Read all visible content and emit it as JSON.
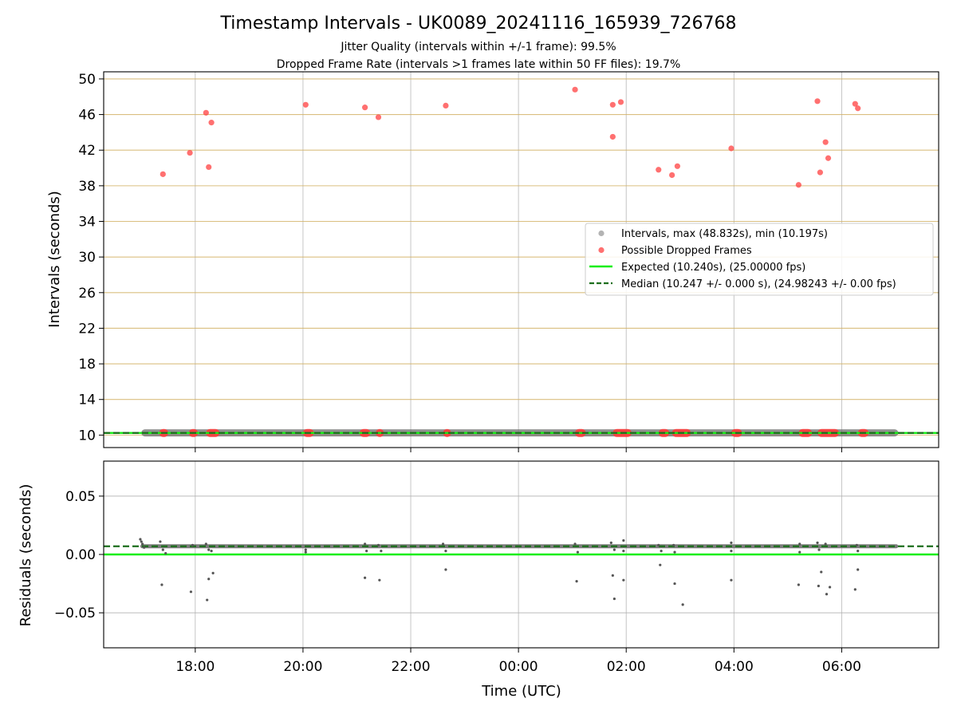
{
  "chart_data": [
    {
      "type": "scatter",
      "panel": "intervals",
      "title": "Timestamp Intervals - UK0089_20241116_165939_726768",
      "subtitles": [
        "Jitter Quality (intervals within +/-1 frame): 99.5%",
        "Dropped Frame Rate (intervals >1 frames late within 50 FF files): 19.7%"
      ],
      "xlabel": "",
      "ylabel": "Intervals (seconds)",
      "x_range_hours": [
        16.3,
        31.8
      ],
      "ylim": [
        8.6,
        50.8
      ],
      "y_ticks": [
        10,
        14,
        18,
        22,
        26,
        30,
        34,
        38,
        42,
        46,
        50
      ],
      "grid": "on",
      "legend_position": "right",
      "legend": [
        "Intervals, max (48.832s), min (10.197s)",
        "Possible Dropped Frames",
        "Expected (10.240s), (25.00000 fps)",
        "Median (10.247 +/- 0.000 s), (24.98243 +/- 0.00 fps)"
      ],
      "series": [
        {
          "name": "Intervals, max (48.832s), min (10.197s)",
          "style": "band",
          "x_start": 17.0,
          "x_end": 31.05,
          "y": 10.247
        },
        {
          "name": "Possible Dropped Frames",
          "style": "points",
          "points": [
            [
              17.4,
              39.3
            ],
            [
              17.9,
              41.7
            ],
            [
              18.2,
              46.2
            ],
            [
              18.25,
              40.1
            ],
            [
              18.3,
              45.1
            ],
            [
              20.05,
              47.1
            ],
            [
              21.15,
              46.8
            ],
            [
              21.4,
              45.7
            ],
            [
              22.65,
              47.0
            ],
            [
              25.05,
              48.8
            ],
            [
              25.75,
              47.1
            ],
            [
              25.75,
              43.5
            ],
            [
              25.9,
              47.4
            ],
            [
              26.6,
              39.8
            ],
            [
              26.85,
              39.2
            ],
            [
              26.95,
              40.2
            ],
            [
              27.95,
              42.2
            ],
            [
              29.2,
              38.1
            ],
            [
              29.55,
              47.5
            ],
            [
              29.6,
              39.5
            ],
            [
              29.7,
              42.9
            ],
            [
              29.75,
              41.1
            ],
            [
              30.25,
              47.2
            ],
            [
              30.3,
              46.7
            ]
          ]
        },
        {
          "name": "Possible Dropped Frames",
          "style": "baseline-clusters",
          "y": 10.24,
          "clusters": [
            [
              17.33,
              17.5
            ],
            [
              17.88,
              18.05
            ],
            [
              18.2,
              18.45
            ],
            [
              20.0,
              20.2
            ],
            [
              21.05,
              21.25
            ],
            [
              21.35,
              21.5
            ],
            [
              22.6,
              22.75
            ],
            [
              25.05,
              25.25
            ],
            [
              25.75,
              26.1
            ],
            [
              26.6,
              26.8
            ],
            [
              26.85,
              27.2
            ],
            [
              27.95,
              28.15
            ],
            [
              29.2,
              29.45
            ],
            [
              29.55,
              29.95
            ],
            [
              30.3,
              30.5
            ]
          ]
        },
        {
          "name": "Expected (10.240s), (25.00000 fps)",
          "style": "hline-solid",
          "y": 10.24
        },
        {
          "name": "Median (10.247 +/- 0.000 s), (24.98243 +/- 0.00 fps)",
          "style": "hline-dashed",
          "y": 10.247
        }
      ]
    },
    {
      "type": "scatter",
      "panel": "residuals",
      "xlabel": "Time (UTC)",
      "ylabel": "Residuals (seconds)",
      "x_range_hours": [
        16.3,
        31.8
      ],
      "ylim": [
        -0.08,
        0.08
      ],
      "y_ticks": [
        0.05,
        0.0,
        -0.05
      ],
      "y_tick_labels": [
        "0.05",
        "0.00",
        "−0.05"
      ],
      "x_ticks": [
        18,
        20,
        22,
        24,
        26,
        28,
        30
      ],
      "x_tick_labels": [
        "18:00",
        "20:00",
        "22:00",
        "00:00",
        "02:00",
        "04:00",
        "06:00"
      ],
      "grid": "on",
      "series": [
        {
          "name": "residual band",
          "style": "band",
          "x_start": 16.98,
          "x_end": 31.05,
          "y": 0.007
        },
        {
          "name": "residual points",
          "style": "points",
          "points": [
            [
              16.98,
              0.013
            ],
            [
              17.0,
              0.011
            ],
            [
              17.02,
              0.009
            ],
            [
              17.05,
              0.006
            ],
            [
              17.35,
              0.011
            ],
            [
              17.4,
              0.004
            ],
            [
              17.45,
              0.001
            ],
            [
              17.38,
              -0.026
            ],
            [
              17.92,
              -0.032
            ],
            [
              17.95,
              0.008
            ],
            [
              18.2,
              0.009
            ],
            [
              18.25,
              0.004
            ],
            [
              18.3,
              0.003
            ],
            [
              18.22,
              -0.039
            ],
            [
              18.25,
              -0.021
            ],
            [
              18.33,
              -0.016
            ],
            [
              20.05,
              0.004
            ],
            [
              20.05,
              0.002
            ],
            [
              21.15,
              0.009
            ],
            [
              21.18,
              0.003
            ],
            [
              21.15,
              -0.02
            ],
            [
              21.4,
              0.008
            ],
            [
              21.45,
              0.003
            ],
            [
              21.42,
              -0.022
            ],
            [
              22.6,
              0.009
            ],
            [
              22.65,
              0.003
            ],
            [
              22.65,
              -0.013
            ],
            [
              25.05,
              0.009
            ],
            [
              25.1,
              0.002
            ],
            [
              25.08,
              -0.023
            ],
            [
              25.72,
              0.01
            ],
            [
              25.78,
              0.004
            ],
            [
              25.75,
              -0.018
            ],
            [
              25.78,
              -0.038
            ],
            [
              25.95,
              0.012
            ],
            [
              25.95,
              0.003
            ],
            [
              25.95,
              -0.022
            ],
            [
              26.6,
              0.008
            ],
            [
              26.65,
              0.003
            ],
            [
              26.63,
              -0.009
            ],
            [
              26.88,
              0.008
            ],
            [
              26.9,
              0.002
            ],
            [
              26.9,
              -0.025
            ],
            [
              27.05,
              -0.043
            ],
            [
              27.95,
              0.01
            ],
            [
              27.95,
              0.003
            ],
            [
              27.95,
              -0.022
            ],
            [
              29.22,
              0.009
            ],
            [
              29.22,
              0.002
            ],
            [
              29.2,
              -0.026
            ],
            [
              29.55,
              0.01
            ],
            [
              29.58,
              0.004
            ],
            [
              29.57,
              -0.027
            ],
            [
              29.62,
              -0.015
            ],
            [
              29.7,
              0.009
            ],
            [
              29.72,
              -0.034
            ],
            [
              29.78,
              -0.028
            ],
            [
              30.28,
              0.008
            ],
            [
              30.3,
              0.003
            ],
            [
              30.3,
              -0.013
            ],
            [
              30.25,
              -0.03
            ]
          ]
        },
        {
          "name": "expected",
          "style": "hline-solid",
          "y": 0.0
        },
        {
          "name": "median",
          "style": "hline-dashed",
          "y": 0.007
        }
      ]
    }
  ]
}
